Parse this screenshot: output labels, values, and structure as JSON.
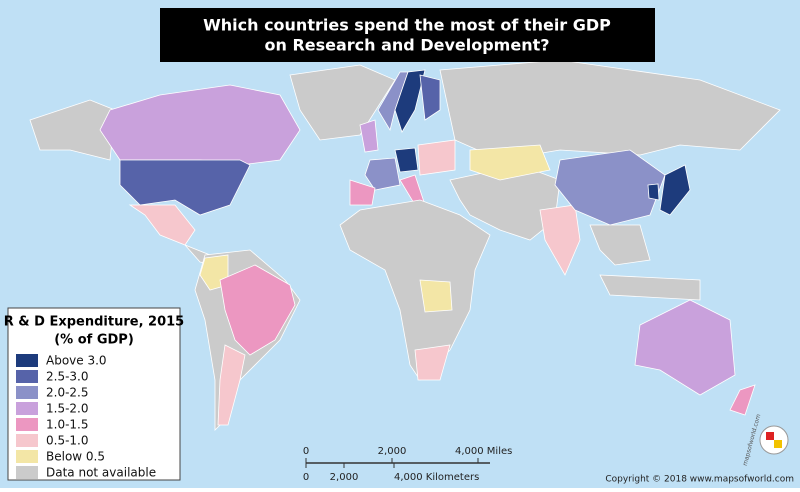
{
  "header": {
    "title_lines": [
      "Which countries spend the most of their GDP",
      "on Research and Development?"
    ]
  },
  "legend": {
    "title": "R & D Expenditure, 2015",
    "subtitle": "(% of GDP)",
    "items": [
      {
        "label": "Above 3.0",
        "color": "#1d3b7c"
      },
      {
        "label": "2.5-3.0",
        "color": "#5663a9"
      },
      {
        "label": "2.0-2.5",
        "color": "#8b91c8"
      },
      {
        "label": "1.5-2.0",
        "color": "#c9a1dc"
      },
      {
        "label": "1.0-1.5",
        "color": "#ec97c1"
      },
      {
        "label": "0.5-1.0",
        "color": "#f6c7cd"
      },
      {
        "label": "Below 0.5",
        "color": "#f3e6a6"
      },
      {
        "label": "Data not available",
        "color": "#cbcbcb"
      }
    ]
  },
  "scale": {
    "miles": [
      "0",
      "2,000",
      "4,000 Miles"
    ],
    "kilometers": [
      "0",
      "2,000",
      "4,000 Kilometers"
    ]
  },
  "copyright": "Copyright © 2018 www.mapsofworld.com",
  "logo": "mapsofworld.com"
}
